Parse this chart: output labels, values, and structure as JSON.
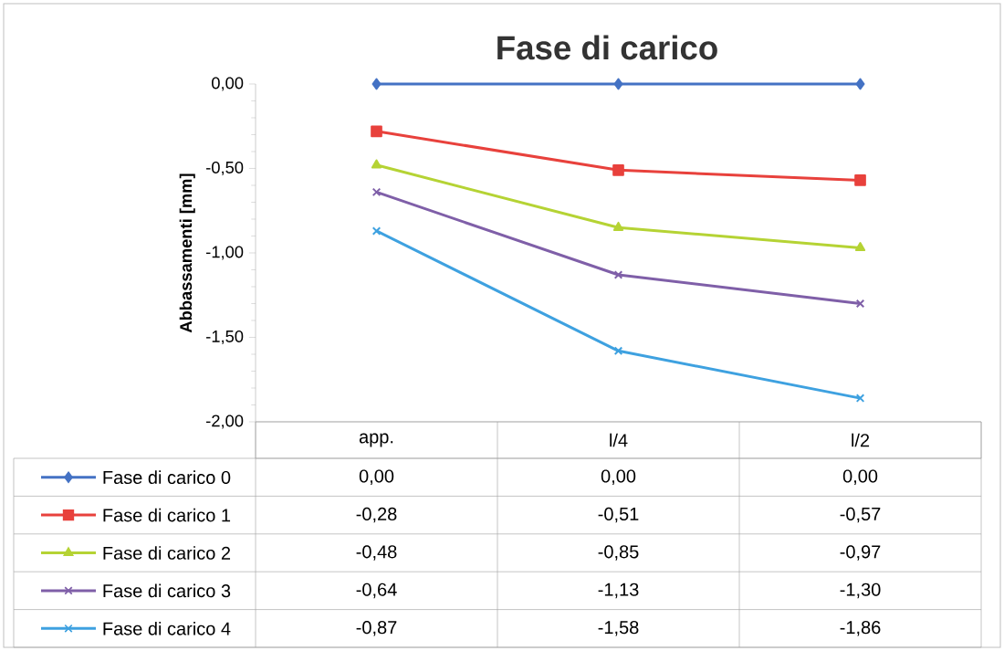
{
  "chart_data": {
    "type": "line",
    "title": "Fase di carico",
    "ylabel": "Abbassamenti [mm]",
    "categories": [
      "app.",
      "l/4",
      "l/2"
    ],
    "ylim": [
      -2,
      0
    ],
    "yticks": [
      {
        "value": -2,
        "label": "-2,00"
      },
      {
        "value": -1.5,
        "label": "-1,50"
      },
      {
        "value": -1,
        "label": "-1,00"
      },
      {
        "value": -0.5,
        "label": "-0,50"
      },
      {
        "value": 0,
        "label": "0,00"
      }
    ],
    "legend": "bottom left",
    "series": [
      {
        "name": "Fase di carico 0",
        "color": "#4472c4",
        "marker": "diamond",
        "values": [
          0,
          0,
          0
        ],
        "value_labels": [
          "0,00",
          "0,00",
          "0,00"
        ]
      },
      {
        "name": "Fase di carico 1",
        "color": "#e8413c",
        "marker": "square",
        "values": [
          -0.28,
          -0.51,
          -0.57
        ],
        "value_labels": [
          "-0,28",
          "-0,51",
          "-0,57"
        ]
      },
      {
        "name": "Fase di carico 2",
        "color": "#b5d334",
        "marker": "triangle",
        "values": [
          -0.48,
          -0.85,
          -0.97
        ],
        "value_labels": [
          "-0,48",
          "-0,85",
          "-0,97"
        ]
      },
      {
        "name": "Fase di carico 3",
        "color": "#7f5fa8",
        "marker": "cross",
        "values": [
          -0.64,
          -1.13,
          -1.3
        ],
        "value_labels": [
          "-0,64",
          "-1,13",
          "-1,30"
        ]
      },
      {
        "name": "Fase di carico 4",
        "color": "#3ea1e0",
        "marker": "cross",
        "values": [
          -0.87,
          -1.58,
          -1.86
        ],
        "value_labels": [
          "-0,87",
          "-1,58",
          "-1,86"
        ]
      }
    ]
  }
}
